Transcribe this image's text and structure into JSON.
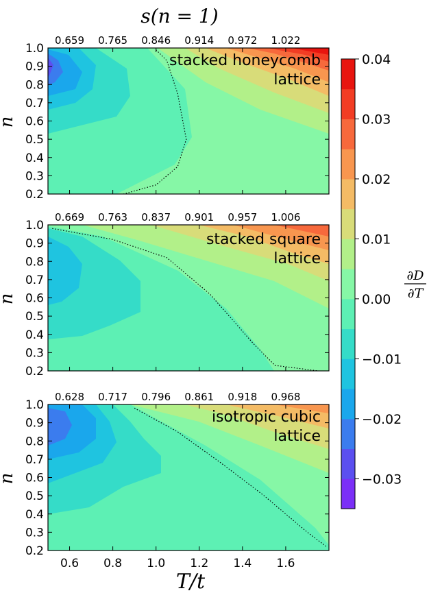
{
  "figure": {
    "title": "s(n = 1)",
    "xlabel": "T/t",
    "ylabel": "n",
    "colorbar_label_num": "∂D",
    "colorbar_label_den": "∂T"
  },
  "colorbar": {
    "levels": [
      -0.035,
      -0.03,
      -0.025,
      -0.02,
      -0.015,
      -0.01,
      -0.005,
      0.0,
      0.005,
      0.01,
      0.015,
      0.02,
      0.025,
      0.03,
      0.035,
      0.04
    ],
    "ticks": [
      -0.03,
      -0.02,
      -0.01,
      0.0,
      0.01,
      0.02,
      0.03,
      0.04
    ],
    "tick_labels": [
      "−0.03",
      "−0.02",
      "−0.01",
      "0.00",
      "0.01",
      "0.02",
      "0.03",
      "0.04"
    ],
    "colors": [
      "#7b2ff7",
      "#5b4ff0",
      "#3b7cee",
      "#1aa7ec",
      "#1fc4e0",
      "#35dcc8",
      "#5df0b4",
      "#86f7a6",
      "#b2f089",
      "#d8dc79",
      "#f4bb65",
      "#f8964f",
      "#f7693c",
      "#f23d24",
      "#e8150f"
    ]
  },
  "chart_data": [
    {
      "type": "heatmap",
      "panel_label": [
        "stacked honeycomb",
        "lattice"
      ],
      "xlim": [
        0.5,
        1.8
      ],
      "ylim": [
        0.2,
        1.0
      ],
      "x_ticks": [
        "0.6",
        "0.8",
        "1.0",
        "1.2",
        "1.4",
        "1.6"
      ],
      "y_ticks": [
        "0.2",
        "0.3",
        "0.4",
        "0.5",
        "0.6",
        "0.7",
        "0.8",
        "0.9",
        "1.0"
      ],
      "top_ticks": [
        "0.659",
        "0.765",
        "0.846",
        "0.914",
        "0.972",
        "1.022"
      ],
      "zero_contour": [
        [
          1.0,
          0.99
        ],
        [
          1.05,
          0.93
        ],
        [
          1.1,
          0.75
        ],
        [
          1.14,
          0.5
        ],
        [
          1.1,
          0.35
        ],
        [
          1.0,
          0.25
        ],
        [
          0.85,
          0.2
        ]
      ]
    },
    {
      "type": "heatmap",
      "panel_label": [
        "stacked square",
        "lattice"
      ],
      "xlim": [
        0.5,
        1.8
      ],
      "ylim": [
        0.2,
        1.0
      ],
      "x_ticks": [
        "0.6",
        "0.8",
        "1.0",
        "1.2",
        "1.4",
        "1.6"
      ],
      "y_ticks": [
        "0.2",
        "0.3",
        "0.4",
        "0.5",
        "0.6",
        "0.7",
        "0.8",
        "0.9",
        "1.0"
      ],
      "top_ticks": [
        "0.669",
        "0.763",
        "0.837",
        "0.901",
        "0.957",
        "1.006"
      ],
      "zero_contour": [
        [
          0.52,
          0.98
        ],
        [
          0.8,
          0.92
        ],
        [
          1.05,
          0.82
        ],
        [
          1.25,
          0.62
        ],
        [
          1.45,
          0.35
        ],
        [
          1.55,
          0.23
        ],
        [
          1.75,
          0.2
        ]
      ]
    },
    {
      "type": "heatmap",
      "panel_label": [
        "isotropic cubic",
        "lattice"
      ],
      "xlim": [
        0.5,
        1.8
      ],
      "ylim": [
        0.2,
        1.0
      ],
      "x_ticks": [
        "0.6",
        "0.8",
        "1.0",
        "1.2",
        "1.4",
        "1.6"
      ],
      "y_ticks": [
        "0.2",
        "0.3",
        "0.4",
        "0.5",
        "0.6",
        "0.7",
        "0.8",
        "0.9",
        "1.0"
      ],
      "top_ticks": [
        "0.628",
        "0.717",
        "0.796",
        "0.861",
        "0.918",
        "0.968"
      ],
      "zero_contour": [
        [
          0.9,
          0.98
        ],
        [
          1.1,
          0.85
        ],
        [
          1.3,
          0.68
        ],
        [
          1.5,
          0.5
        ],
        [
          1.7,
          0.3
        ],
        [
          1.79,
          0.22
        ]
      ]
    }
  ]
}
